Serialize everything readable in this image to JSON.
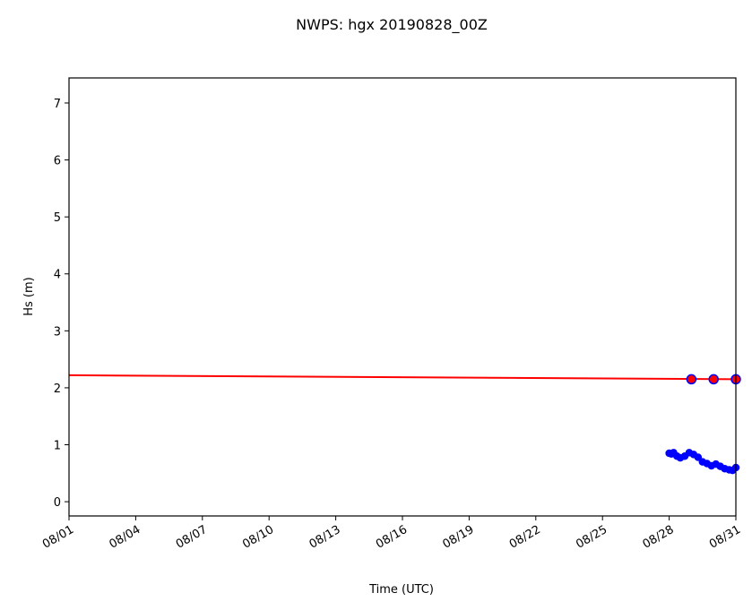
{
  "chart_data": {
    "type": "line",
    "title": "NWPS: hgx 20190828_00Z",
    "xlabel": "Time (UTC)",
    "ylabel": "Hs (m)",
    "xlim": [
      1,
      31
    ],
    "ylim": [
      -0.25,
      7.44
    ],
    "xticks": [
      {
        "value": 1,
        "label": "08/01"
      },
      {
        "value": 4,
        "label": "08/04"
      },
      {
        "value": 7,
        "label": "08/07"
      },
      {
        "value": 10,
        "label": "08/10"
      },
      {
        "value": 13,
        "label": "08/13"
      },
      {
        "value": 16,
        "label": "08/16"
      },
      {
        "value": 19,
        "label": "08/19"
      },
      {
        "value": 22,
        "label": "08/22"
      },
      {
        "value": 25,
        "label": "08/25"
      },
      {
        "value": 28,
        "label": "08/28"
      },
      {
        "value": 31,
        "label": "08/31"
      }
    ],
    "yticks": [
      0,
      1,
      2,
      3,
      4,
      5,
      6,
      7
    ],
    "series": [
      {
        "color": "#ff0000",
        "marker": false,
        "x": [
          1,
          31
        ],
        "values": [
          2.22,
          2.15
        ]
      },
      {
        "color": "#ff0000",
        "edgecolor": "#0000ff",
        "marker": true,
        "line": false,
        "x": [
          29,
          30,
          31
        ],
        "values": [
          2.15,
          2.15,
          2.15
        ]
      },
      {
        "color": "#0000ff",
        "marker": true,
        "x": [
          28,
          28.1,
          28.2,
          28.35,
          28.5,
          28.7,
          28.9,
          29.1,
          29.3,
          29.5,
          29.7,
          29.9,
          30.1,
          30.3,
          30.5,
          30.7,
          30.85,
          31
        ],
        "values": [
          0.85,
          0.84,
          0.86,
          0.8,
          0.77,
          0.8,
          0.86,
          0.83,
          0.78,
          0.7,
          0.67,
          0.63,
          0.66,
          0.62,
          0.58,
          0.56,
          0.55,
          0.6
        ]
      }
    ]
  }
}
